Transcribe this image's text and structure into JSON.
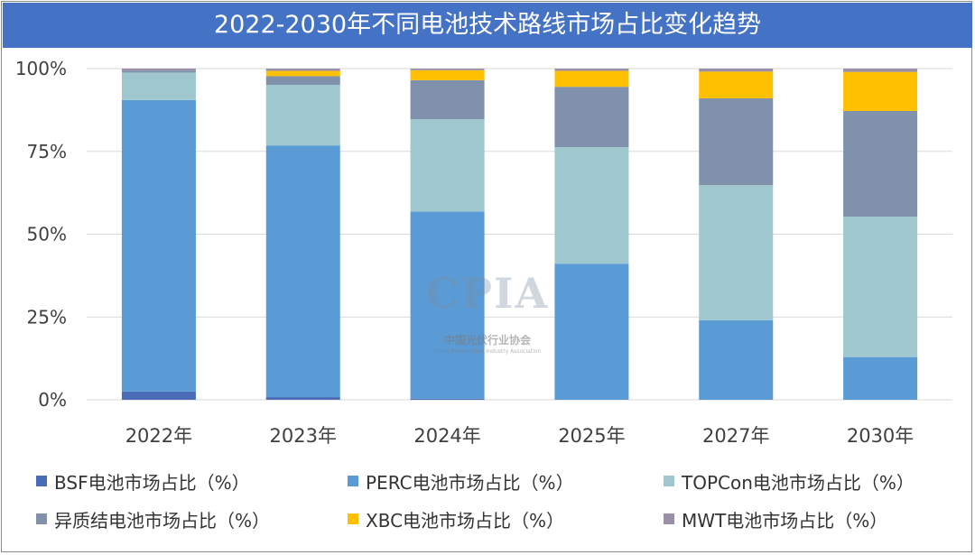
{
  "chart_data": {
    "type": "bar",
    "stacked": true,
    "title": "2022-2030年不同电池技术路线市场占比变化趋势",
    "categories": [
      "2022年",
      "2023年",
      "2024年",
      "2025年",
      "2027年",
      "2030年"
    ],
    "ylim": [
      0,
      100
    ],
    "yticks": [
      "0%",
      "25%",
      "50%",
      "75%",
      "100%"
    ],
    "grid": true,
    "legend_position": "bottom",
    "series": [
      {
        "name": "BSF电池市场占比（%）",
        "color": "#4a6bb5",
        "values": [
          2.5,
          0.8,
          0.3,
          0,
          0,
          0
        ]
      },
      {
        "name": "PERC电池市场占比（%）",
        "color": "#5b9bd5",
        "values": [
          88.0,
          76.0,
          56.5,
          41.1,
          24.0,
          12.9
        ]
      },
      {
        "name": "TOPCon电池市场占比（%）",
        "color": "#9ec7ce",
        "values": [
          8.3,
          18.3,
          27.9,
          35.2,
          40.8,
          42.4
        ]
      },
      {
        "name": "异质结电池市场占比（%）",
        "color": "#7f91ab",
        "values": [
          0.6,
          2.6,
          11.8,
          18.2,
          26.2,
          31.9
        ]
      },
      {
        "name": "XBC电池市场占比（%）",
        "color": "#ffc000",
        "values": [
          0.0,
          1.6,
          3.0,
          4.8,
          8.1,
          11.8
        ]
      },
      {
        "name": "MWT电池市场占比（%）",
        "color": "#9b8fa7",
        "values": [
          0.6,
          0.7,
          0.5,
          0.7,
          0.9,
          1.0
        ]
      }
    ]
  },
  "watermark": {
    "logo_text": "CPIA",
    "org_cn": "中国光伏行业协会",
    "org_en": "China Photovoltaic Industry Association"
  }
}
